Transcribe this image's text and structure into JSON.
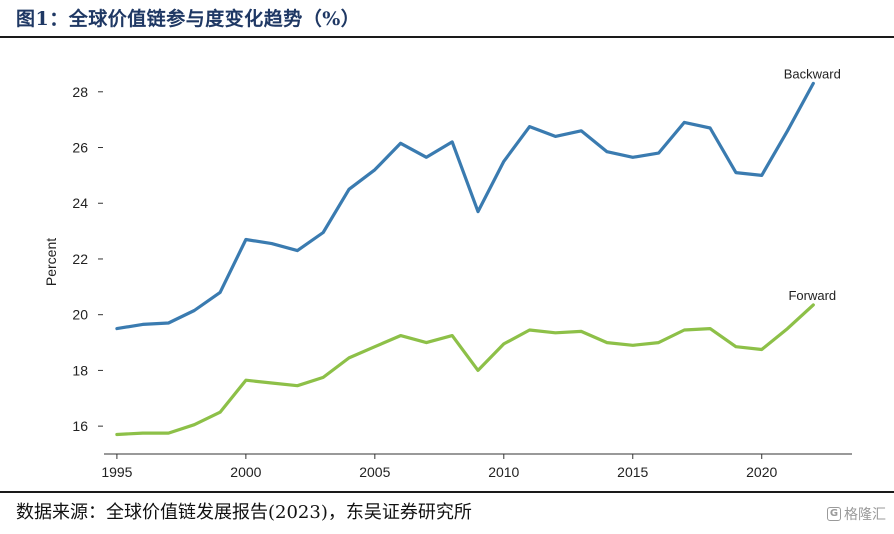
{
  "figure": {
    "title": "图1：全球价值链参与度变化趋势（%）",
    "source": "数据来源：全球价值链发展报告(2023)，东吴证券研究所",
    "watermark": "格隆汇"
  },
  "chart_data": {
    "type": "line",
    "title": "",
    "xlabel": "",
    "ylabel": "Percent",
    "xlim": [
      1994.5,
      2023.5
    ],
    "ylim": [
      15,
      29.5
    ],
    "x_ticks": [
      1995,
      2000,
      2005,
      2010,
      2015,
      2020
    ],
    "y_ticks": [
      16,
      18,
      20,
      22,
      24,
      26,
      28
    ],
    "grid": false,
    "legend": "inline labels at line ends",
    "x": [
      1995,
      1996,
      1997,
      1998,
      1999,
      2000,
      2001,
      2002,
      2003,
      2004,
      2005,
      2006,
      2007,
      2008,
      2009,
      2010,
      2011,
      2012,
      2013,
      2014,
      2015,
      2016,
      2017,
      2018,
      2019,
      2020,
      2021,
      2022
    ],
    "series": [
      {
        "name": "Backward",
        "color": "#3a7bb0",
        "values": [
          19.5,
          19.65,
          19.7,
          20.15,
          20.8,
          22.7,
          22.55,
          22.3,
          22.95,
          24.5,
          25.2,
          26.15,
          25.65,
          26.2,
          23.7,
          25.5,
          26.75,
          26.4,
          26.6,
          25.85,
          25.65,
          25.8,
          26.9,
          26.7,
          25.1,
          25.0,
          26.6,
          28.3
        ]
      },
      {
        "name": "Forward",
        "color": "#8dc048",
        "values": [
          15.7,
          15.75,
          15.75,
          16.05,
          16.5,
          17.65,
          17.55,
          17.45,
          17.75,
          18.45,
          18.85,
          19.25,
          19.0,
          19.25,
          18.0,
          18.95,
          19.45,
          19.35,
          19.4,
          19.0,
          18.9,
          19.0,
          19.45,
          19.5,
          18.85,
          18.75,
          19.5,
          20.35
        ]
      }
    ]
  }
}
